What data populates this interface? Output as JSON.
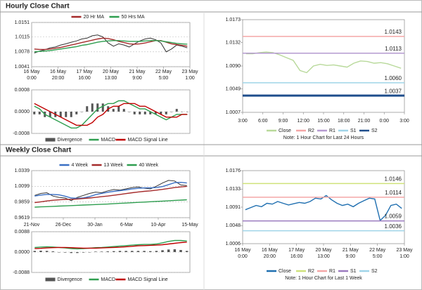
{
  "chart_data": [
    {
      "type": "line",
      "title": "Hourly Close Chart",
      "grid": true,
      "ylim": [
        1.0041,
        1.0151
      ],
      "yticks": [
        1.0041,
        1.0078,
        1.0115,
        1.0151
      ],
      "xlabels": [
        [
          "16 May",
          "0:00"
        ],
        [
          "16 May",
          "20:00"
        ],
        [
          "17 May",
          "16:00"
        ],
        [
          "20 May",
          "13:00"
        ],
        [
          "21 May",
          "9:00"
        ],
        [
          "22 May",
          "5:00"
        ],
        [
          "23 May",
          "1:00"
        ]
      ],
      "color": "#333333",
      "values": [
        1.0075,
        1.008,
        1.0083,
        1.0088,
        1.009,
        1.0095,
        1.0098,
        1.0102,
        1.0105,
        1.011,
        1.0112,
        1.0118,
        1.012,
        1.0115,
        1.01,
        1.0092,
        1.0098,
        1.0095,
        1.009,
        1.0098,
        1.0105,
        1.011,
        1.0112,
        1.0108,
        1.01,
        1.0078,
        1.0085,
        1.0095,
        1.0092,
        1.0088
      ],
      "series": [
        {
          "name": "20 Hr MA",
          "color": "#a52a2a",
          "values": [
            1.0085,
            1.0084,
            1.0084,
            1.0085,
            1.0087,
            1.0089,
            1.0092,
            1.0095,
            1.0098,
            1.0101,
            1.0104,
            1.0107,
            1.011,
            1.0112,
            1.0111,
            1.0108,
            1.0104,
            1.0101,
            1.0098,
            1.0097,
            1.0098,
            1.01,
            1.0103,
            1.0106,
            1.0106,
            1.0102,
            1.0098,
            1.0096,
            1.0094,
            1.0092
          ]
        },
        {
          "name": "50 Hrs MA",
          "color": "#2e9e4f",
          "values": [
            1.0078,
            1.0079,
            1.008,
            1.0081,
            1.0083,
            1.0085,
            1.0087,
            1.0089,
            1.0091,
            1.0094,
            1.0096,
            1.0099,
            1.0102,
            1.0104,
            1.0105,
            1.0106,
            1.0106,
            1.0105,
            1.0104,
            1.0104,
            1.0104,
            1.0105,
            1.0106,
            1.0106,
            1.0105,
            1.0103,
            1.0101,
            1.0099,
            1.0098,
            1.0097
          ]
        }
      ]
    },
    {
      "type": "line",
      "grid": true,
      "ylim": [
        -0.0008,
        0.0008
      ],
      "yticks": [
        0.0008,
        {
          "value": 0,
          "label": "0.0000"
        },
        -0.0008
      ],
      "series": [
        {
          "name": "Divergence",
          "type": "bar",
          "color": "#555555",
          "values": [
            -0.0001,
            -0.0001,
            -0.0002,
            -0.0002,
            -0.0002,
            -0.0002,
            -0.0002,
            -0.0002,
            -0.0001,
            0,
            0.0002,
            0.0003,
            0.0003,
            0.0003,
            0.0002,
            0.0001,
            0.0002,
            0.0001,
            0,
            -0.0001,
            -0.0001,
            -0.0001,
            -0.0001,
            -0.0001,
            -0.0001,
            -0.0001,
            0,
            0.0001,
            0,
            0
          ]
        },
        {
          "name": "MACD",
          "color": "#2e9e4f",
          "values": [
            0.0002,
            0.0001,
            -0.0001,
            -0.0002,
            -0.0003,
            -0.0004,
            -0.0005,
            -0.0006,
            -0.0006,
            -0.0005,
            -0.0003,
            -0.0001,
            0.0001,
            0.0002,
            0.0003,
            0.0003,
            0.0004,
            0.0004,
            0.0003,
            0.0002,
            0.0001,
            0.0001,
            0,
            -0.0001,
            -0.0002,
            -0.0003,
            -0.0002,
            -0.0001,
            -0.0001,
            -0.0001
          ]
        },
        {
          "name": "MACD Signal Line",
          "color": "#c00000",
          "values": [
            0.0003,
            0.0002,
            0.0001,
            0,
            -0.0001,
            -0.0002,
            -0.0003,
            -0.0004,
            -0.0005,
            -0.0005,
            -0.0005,
            -0.0004,
            -0.0002,
            -0.0001,
            0.0001,
            0.0002,
            0.0002,
            0.0003,
            0.0003,
            0.0003,
            0.0002,
            0.0002,
            0.0001,
            0,
            -0.0001,
            -0.0002,
            -0.0002,
            -0.0002,
            -0.0001,
            -0.0001
          ]
        }
      ]
    },
    {
      "type": "line",
      "note": "Note: 1 Hour Chart for Last 24 Hours",
      "ylim": [
        1.0007,
        1.0173
      ],
      "yticks": [
        1.0007,
        1.0049,
        {
          "value": 1.009,
          "label": "1.0090"
        },
        1.0132,
        1.0173
      ],
      "xlabels": [
        "3:00",
        "6:00",
        "9:00",
        "12:00",
        "15:00",
        "18:00",
        "21:00",
        "0:00",
        "3:00"
      ],
      "series": [
        {
          "name": "Close",
          "color": "#b8d99a",
          "values": [
            1.0112,
            1.0112,
            1.0114,
            1.0115,
            1.0114,
            1.011,
            1.0105,
            1.01,
            1.0082,
            1.0078,
            1.009,
            1.0093,
            1.0091,
            1.0092,
            1.009,
            1.0088,
            1.0095,
            1.0099,
            1.0098,
            1.0095,
            1.0096,
            1.0094,
            1.009,
            1.0086
          ]
        },
        {
          "name": "R2",
          "color": "#f4a6a6",
          "value": 1.0143
        },
        {
          "name": "R1",
          "color": "#b59ad0",
          "value": 1.0113
        },
        {
          "name": "S1",
          "color": "#9fd4e8",
          "value": 1.006,
          "value_label": "1.0060"
        },
        {
          "name": "S2",
          "color": "#1f4e8c",
          "value": 1.0037
        }
      ]
    },
    {
      "type": "line",
      "title": "Weekly Close Chart",
      "grid": true,
      "ylim": [
        0.9619,
        1.0339
      ],
      "yticks": [
        0.9619,
        0.9859,
        1.0099,
        1.0339
      ],
      "xlabels": [
        "21-Nov",
        "26-Dec",
        "30-Jan",
        "6-Mar",
        "10-Apr",
        "15-May"
      ],
      "color": "#333333",
      "values": [
        0.996,
        0.999,
        1.0,
        0.995,
        0.993,
        0.992,
        0.988,
        0.993,
        0.996,
        0.999,
        1.001,
        1.0,
        1.003,
        1.005,
        1.004,
        1.006,
        1.008,
        1.009,
        1.007,
        1.006,
        1.01,
        1.015,
        1.019,
        1.018,
        1.012,
        1.011
      ],
      "series": [
        {
          "name": "4 Week",
          "color": "#3a6fc4",
          "values": [
            0.995,
            0.9965,
            0.9975,
            0.9975,
            0.9968,
            0.9948,
            0.992,
            0.9915,
            0.9922,
            0.994,
            0.9972,
            0.999,
            1.0008,
            1.0022,
            1.0032,
            1.0045,
            1.0058,
            1.0068,
            1.0075,
            1.0075,
            1.008,
            1.0095,
            1.0125,
            1.0155,
            1.016,
            1.015
          ]
        },
        {
          "name": "13 Week",
          "color": "#a52a2a",
          "values": [
            0.985,
            0.9862,
            0.9875,
            0.9885,
            0.9892,
            0.9898,
            0.99,
            0.9905,
            0.9912,
            0.992,
            0.993,
            0.994,
            0.995,
            0.9962,
            0.9975,
            0.9988,
            1.0,
            1.0012,
            1.0022,
            1.003,
            1.004,
            1.0052,
            1.0066,
            1.008,
            1.009,
            1.0098
          ]
        },
        {
          "name": "40 Week",
          "color": "#2e9e4f",
          "values": [
            0.978,
            0.9784,
            0.9788,
            0.9792,
            0.9796,
            0.98,
            0.9804,
            0.9808,
            0.9812,
            0.9816,
            0.982,
            0.9824,
            0.9828,
            0.9833,
            0.9838,
            0.9843,
            0.9848,
            0.9853,
            0.9858,
            0.9863,
            0.9868,
            0.9873,
            0.9878,
            0.9883,
            0.9888,
            0.9893
          ]
        }
      ]
    },
    {
      "type": "line",
      "grid": true,
      "ylim": [
        -0.0088,
        0.0088
      ],
      "yticks": [
        0.0088,
        {
          "value": 0,
          "label": "0.0000"
        },
        -0.0088
      ],
      "series": [
        {
          "name": "Divergence",
          "type": "bar",
          "color": "#555555",
          "values": [
            0.0005,
            0.0006,
            0.0005,
            0.0003,
            0,
            -0.0002,
            -0.0004,
            -0.0004,
            -0.0002,
            0,
            0.0002,
            0.0002,
            0.0003,
            0.0004,
            0.0005,
            0.0005,
            0.0005,
            0.0005,
            0.0005,
            0.0004,
            0.0005,
            0.0008,
            0.0011,
            0.0012,
            0.0009,
            0.0005
          ]
        },
        {
          "name": "MACD",
          "color": "#2e9e4f",
          "values": [
            0.002,
            0.0022,
            0.0023,
            0.0022,
            0.002,
            0.0018,
            0.0015,
            0.0014,
            0.0015,
            0.0017,
            0.0019,
            0.002,
            0.0022,
            0.0024,
            0.0026,
            0.0028,
            0.003,
            0.0032,
            0.0033,
            0.0033,
            0.0035,
            0.004,
            0.0046,
            0.005,
            0.005,
            0.0048
          ]
        },
        {
          "name": "MACD Signal Line",
          "color": "#c00000",
          "values": [
            0.0015,
            0.0016,
            0.0018,
            0.0019,
            0.002,
            0.002,
            0.0019,
            0.0018,
            0.0017,
            0.0017,
            0.0017,
            0.0018,
            0.0019,
            0.002,
            0.0021,
            0.0023,
            0.0025,
            0.0027,
            0.0028,
            0.0029,
            0.003,
            0.0032,
            0.0035,
            0.0038,
            0.0041,
            0.0043
          ]
        }
      ]
    },
    {
      "type": "line",
      "note": "Note: 1 Hour Chart for Last 1 Week",
      "ylim": [
        1.0006,
        1.0176
      ],
      "yticks": [
        1.0006,
        1.0048,
        1.0091,
        1.0133,
        1.0176
      ],
      "xlabels": [
        [
          "16 May",
          "0:00"
        ],
        [
          "16 May",
          "20:00"
        ],
        [
          "17 May",
          "16:00"
        ],
        [
          "20 May",
          "13:00"
        ],
        [
          "21 May",
          "9:00"
        ],
        [
          "22 May",
          "5:00"
        ],
        [
          "23 May",
          "1:00"
        ]
      ],
      "series": [
        {
          "name": "Close",
          "color": "#1f6fb0",
          "values": [
            1.0085,
            1.009,
            1.0095,
            1.0092,
            1.01,
            1.0098,
            1.0104,
            1.01,
            1.0096,
            1.0099,
            1.0102,
            1.01,
            1.0104,
            1.0112,
            1.011,
            1.0118,
            1.0108,
            1.01,
            1.0095,
            1.0098,
            1.0092,
            1.01,
            1.0106,
            1.0112,
            1.011,
            1.006,
            1.0072,
            1.0095,
            1.0098,
            1.0088
          ]
        },
        {
          "name": "R2",
          "color": "#cfe27a",
          "value": 1.0146
        },
        {
          "name": "R1",
          "color": "#f4a6a6",
          "value": 1.0114
        },
        {
          "name": "S1",
          "color": "#9b7bbf",
          "value": 1.0059
        },
        {
          "name": "S2",
          "color": "#9fd4e8",
          "value": 1.0036
        }
      ]
    }
  ]
}
